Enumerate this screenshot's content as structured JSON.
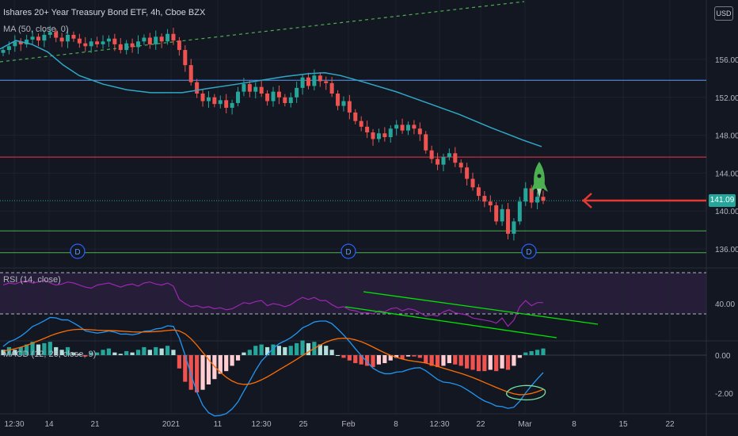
{
  "header": {
    "title": "Ishares 20+ Year Treasury Bond ETF, 4h, Cboe BZX",
    "ma_label": "MA (50, close, 0)",
    "rsi_label": "RSI (14, close)",
    "macd_label": "MACD (12, 26, close, 9)",
    "currency": "USD",
    "last_price": "141.09"
  },
  "chart_data": {
    "type": "candlestick",
    "price_axis": {
      "ticks": [
        "156.00",
        "152.00",
        "148.00",
        "144.00",
        "140.00",
        "136.00"
      ],
      "range": [
        134.5,
        161
      ]
    },
    "rsi_axis": {
      "ticks": [
        "40.00"
      ],
      "bands": [
        70,
        30
      ]
    },
    "macd_axis": {
      "ticks": [
        "0.00",
        "-2.00"
      ]
    },
    "time_axis": [
      "12:30",
      "14",
      "21",
      "2021",
      "11",
      "12:30",
      "25",
      "Feb",
      "8",
      "12:30",
      "22",
      "Mar",
      "8",
      "15",
      "22"
    ],
    "close_series": [
      157.0,
      157.4,
      157.9,
      157.6,
      158.1,
      158.4,
      158.0,
      158.6,
      158.9,
      158.3,
      157.9,
      158.6,
      158.2,
      157.7,
      157.4,
      157.9,
      157.6,
      157.9,
      158.2,
      157.6,
      157.0,
      157.7,
      157.3,
      157.9,
      158.3,
      157.6,
      158.4,
      157.9,
      158.7,
      158.0,
      157.0,
      155.4,
      153.6,
      152.4,
      151.6,
      152.0,
      151.3,
      151.7,
      150.9,
      151.4,
      152.6,
      153.4,
      152.6,
      153.1,
      152.4,
      151.6,
      152.6,
      152.0,
      151.4,
      152.0,
      153.0,
      154.1,
      153.2,
      154.3,
      153.7,
      153.5,
      152.4,
      151.1,
      151.6,
      150.4,
      149.5,
      148.9,
      148.3,
      147.6,
      148.2,
      147.8,
      148.7,
      149.1,
      148.5,
      149.1,
      148.7,
      148.1,
      146.4,
      145.5,
      144.9,
      145.7,
      146.1,
      145.1,
      144.6,
      143.4,
      142.5,
      141.6,
      141.0,
      140.6,
      138.9,
      140.2,
      137.6,
      138.9,
      141.0,
      142.4,
      140.9,
      141.5,
      141.09
    ],
    "ma50": [
      [
        0,
        157.1
      ],
      [
        20,
        158.0
      ],
      [
        40,
        157.6
      ],
      [
        60,
        156.8
      ],
      [
        80,
        155.4
      ],
      [
        100,
        154.3
      ],
      [
        130,
        153.4
      ],
      [
        160,
        152.8
      ],
      [
        190,
        152.5
      ],
      [
        230,
        152.5
      ],
      [
        260,
        152.9
      ],
      [
        300,
        153.4
      ],
      [
        330,
        153.8
      ],
      [
        360,
        154.2
      ],
      [
        390,
        154.5
      ],
      [
        410,
        154.6
      ],
      [
        430,
        154.3
      ],
      [
        460,
        153.6
      ],
      [
        500,
        152.6
      ],
      [
        540,
        151.4
      ],
      [
        580,
        150.2
      ],
      [
        620,
        148.8
      ],
      [
        660,
        147.5
      ],
      [
        684,
        146.8
      ]
    ],
    "horizontal_levels": [
      {
        "price": 153.8,
        "color": "#5b9cf6"
      },
      {
        "price": 145.7,
        "color": "#f23645"
      },
      {
        "price": 137.9,
        "color": "#4caf50"
      },
      {
        "price": 135.6,
        "color": "#4caf50"
      }
    ],
    "dividend_markers": [
      98,
      440,
      668
    ],
    "rsi_series": [
      58,
      60,
      59,
      61,
      62,
      60,
      61,
      63,
      60,
      58,
      59,
      61,
      60,
      58,
      56,
      55,
      58,
      59,
      60,
      58,
      56,
      58,
      59,
      57,
      60,
      61,
      59,
      58,
      60,
      57,
      44,
      40,
      37,
      38,
      36,
      37,
      35,
      36,
      34,
      35,
      38,
      41,
      40,
      42,
      43,
      38,
      40,
      39,
      37,
      39,
      43,
      46,
      44,
      46,
      43,
      43,
      39,
      36,
      37,
      34,
      33,
      31,
      31,
      30,
      33,
      32,
      35,
      36,
      33,
      35,
      34,
      31,
      28,
      29,
      28,
      32,
      34,
      31,
      30,
      29,
      26,
      25,
      24,
      23,
      21,
      26,
      18,
      24,
      37,
      43,
      38,
      41,
      41
    ],
    "macd_hist": [
      0.2,
      0.3,
      0.2,
      0.3,
      0.4,
      0.5,
      0.4,
      0.45,
      0.5,
      0.3,
      0.2,
      0.3,
      0.1,
      0.05,
      -0.05,
      0.1,
      0.1,
      0.2,
      0.25,
      0.1,
      0.05,
      0.15,
      0.1,
      0.2,
      0.3,
      0.2,
      0.3,
      0.25,
      0.35,
      0.2,
      -0.5,
      -1.0,
      -1.3,
      -1.4,
      -1.3,
      -1.1,
      -0.9,
      -0.7,
      -0.6,
      -0.4,
      -0.2,
      0.1,
      0.2,
      0.35,
      0.4,
      0.3,
      0.4,
      0.35,
      0.3,
      0.35,
      0.45,
      0.55,
      0.45,
      0.5,
      0.4,
      0.35,
      0.2,
      0.0,
      -0.1,
      -0.2,
      -0.3,
      -0.35,
      -0.4,
      -0.45,
      -0.35,
      -0.3,
      -0.2,
      -0.1,
      -0.15,
      -0.05,
      -0.05,
      -0.1,
      -0.3,
      -0.4,
      -0.45,
      -0.4,
      -0.3,
      -0.35,
      -0.4,
      -0.5,
      -0.55,
      -0.6,
      -0.6,
      -0.55,
      -0.6,
      -0.5,
      -0.55,
      -0.4,
      -0.1,
      0.1,
      0.15,
      0.2,
      0.25
    ]
  },
  "colors": {
    "up": "#26a69a",
    "down": "#ef5350",
    "ma": "#2fa8c6",
    "rsi": "#9c27b0",
    "macd": "#2196f3",
    "signal": "#ff6d00",
    "annotation": "#00e600",
    "arrow": "#e53935",
    "rocket": "#4caf50"
  }
}
